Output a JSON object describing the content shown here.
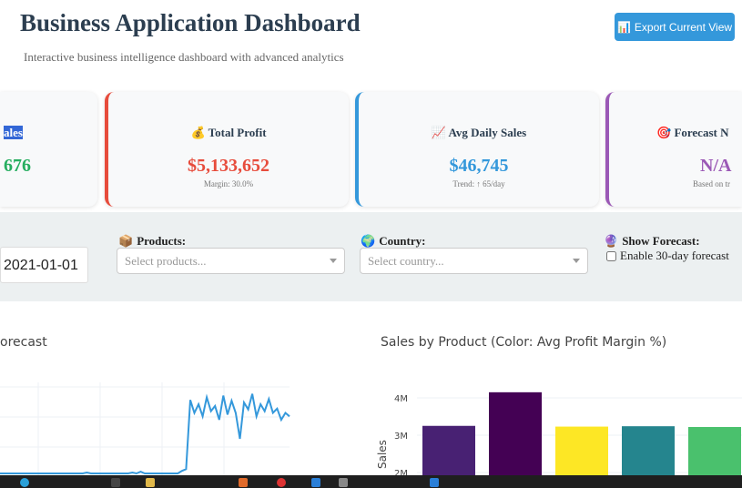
{
  "header": {
    "title": "Business Application Dashboard",
    "subtitle": "Interactive business intelligence dashboard with advanced analytics",
    "export_label": "Export Current View",
    "export_icon": "bar-chart-icon"
  },
  "kpis": [
    {
      "label": "ales",
      "value": "676",
      "sub": "",
      "color": "#27ae60",
      "icon": ""
    },
    {
      "label": "Total Profit",
      "value": "$5,133,652",
      "sub": "Margin: 30.0%",
      "color": "#e74c3c",
      "icon": "money-bag-icon"
    },
    {
      "label": "Avg Daily Sales",
      "value": "$46,745",
      "sub": "Trend: ↑ 65/day",
      "color": "#3498db",
      "icon": "chart-increasing-icon"
    },
    {
      "label": "Forecast N",
      "value": "N/A",
      "sub": "Based on tr",
      "color": "#9b59b6",
      "icon": "target-icon"
    }
  ],
  "filters": {
    "date_value": "2021-01-01",
    "products": {
      "label": "Products:",
      "placeholder": "Select products..."
    },
    "country": {
      "label": "Country:",
      "placeholder": "Select country..."
    },
    "forecast": {
      "label": "Show Forecast:",
      "checkbox_label": "Enable 30-day forecast",
      "checked": false
    }
  },
  "chart_data": [
    {
      "type": "line",
      "title": "orecast",
      "color": "#3498db",
      "values": [
        0,
        0,
        0,
        0,
        0,
        0,
        0,
        0,
        0,
        0,
        0,
        0,
        0,
        0,
        0,
        0,
        0,
        0,
        0,
        0,
        0,
        1,
        0,
        0,
        0,
        0,
        0,
        0,
        0,
        0,
        0,
        0,
        1,
        0,
        2,
        0,
        0,
        0,
        0,
        0,
        0,
        0,
        0,
        0,
        3,
        5,
        85,
        70,
        80,
        66,
        88,
        72,
        78,
        62,
        90,
        68,
        84,
        70,
        40,
        82,
        74,
        92,
        66,
        80,
        72,
        86,
        70,
        75,
        62,
        70,
        66
      ]
    },
    {
      "type": "bar",
      "title": "Sales by Product (Color: Avg Profit Margin %)",
      "ylabel": "Sales",
      "yticks": [
        "2M",
        "3M",
        "4M"
      ],
      "ylim": [
        2000000,
        4300000
      ],
      "values": [
        3250000,
        4150000,
        3230000,
        3240000,
        3220000
      ],
      "colors": [
        "#482173",
        "#440154",
        "#fde725",
        "#25858e",
        "#4ac16d"
      ]
    }
  ]
}
